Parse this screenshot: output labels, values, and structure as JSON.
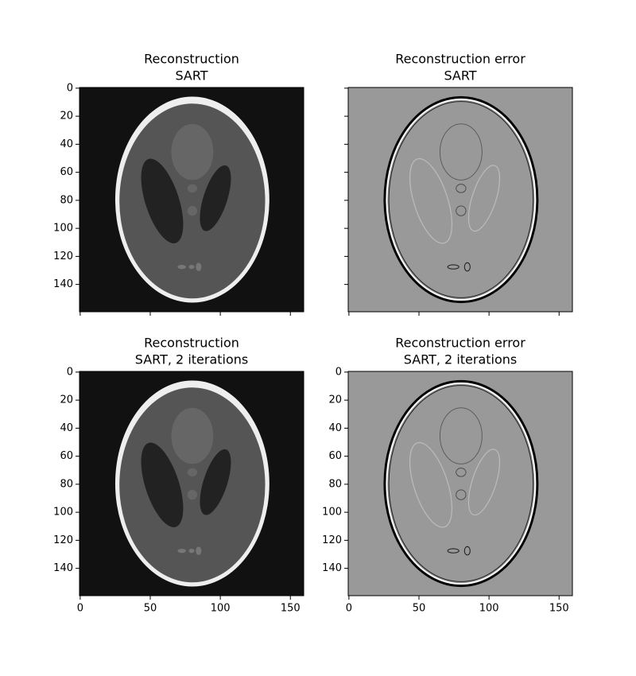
{
  "chart_data": [
    {
      "type": "image",
      "title": [
        "Reconstruction",
        "SART"
      ],
      "mode": "reconstruction",
      "xlim": [
        -0.5,
        159.5
      ],
      "ylim": [
        159.5,
        -0.5
      ],
      "xticks": [
        0,
        50,
        100,
        150
      ],
      "yticks": [
        0,
        20,
        40,
        60,
        80,
        100,
        120,
        140
      ],
      "xticklabels": false,
      "yticklabels": true
    },
    {
      "type": "image",
      "title": [
        "Reconstruction error",
        "SART"
      ],
      "mode": "error",
      "xlim": [
        -0.5,
        159.5
      ],
      "ylim": [
        159.5,
        -0.5
      ],
      "xticks": [
        0,
        50,
        100,
        150
      ],
      "yticks": [
        0,
        20,
        40,
        60,
        80,
        100,
        120,
        140
      ],
      "xticklabels": false,
      "yticklabels": false
    },
    {
      "type": "image",
      "title": [
        "Reconstruction",
        "SART, 2 iterations"
      ],
      "mode": "reconstruction",
      "xlim": [
        -0.5,
        159.5
      ],
      "ylim": [
        159.5,
        -0.5
      ],
      "xticks": [
        0,
        50,
        100,
        150
      ],
      "yticks": [
        0,
        20,
        40,
        60,
        80,
        100,
        120,
        140
      ],
      "xticklabels": true,
      "yticklabels": true
    },
    {
      "type": "image",
      "title": [
        "Reconstruction error",
        "SART, 2 iterations"
      ],
      "mode": "error",
      "xlim": [
        -0.5,
        159.5
      ],
      "ylim": [
        159.5,
        -0.5
      ],
      "xticks": [
        0,
        50,
        100,
        150
      ],
      "yticks": [
        0,
        20,
        40,
        60,
        80,
        100,
        120,
        140
      ],
      "xticklabels": true,
      "yticklabels": true
    }
  ]
}
